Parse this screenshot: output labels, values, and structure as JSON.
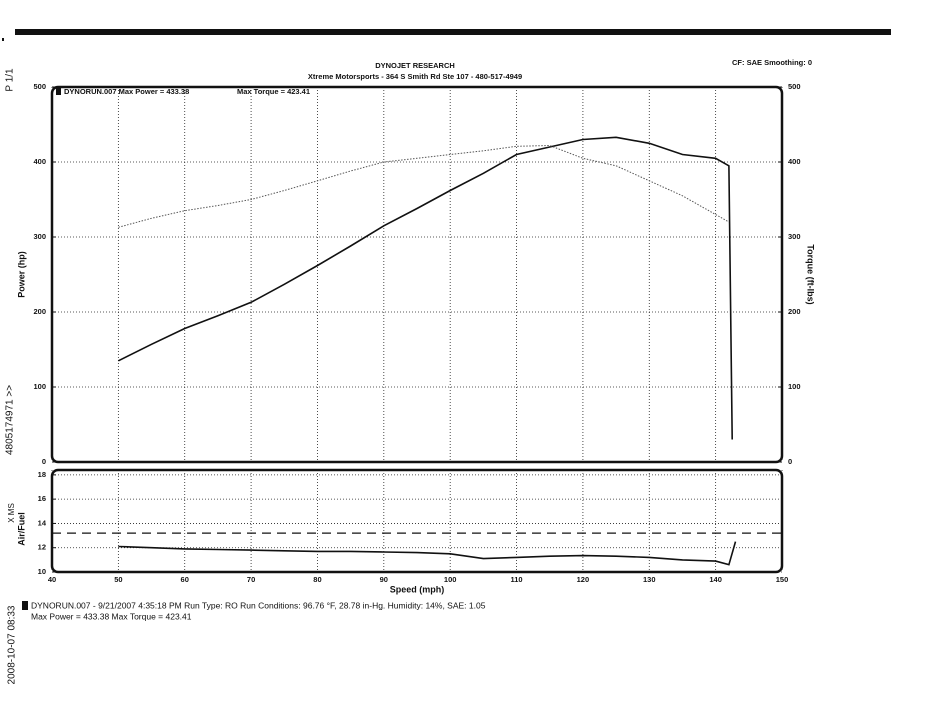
{
  "header": {
    "title": "DYNOJET RESEARCH",
    "subtitle": "Xtreme Motorsports - 364 S Smith Rd Ste 107 - 480-517-4949",
    "settings": "CF: SAE  Smoothing: 0"
  },
  "margin": {
    "page": "P 1/1",
    "phone": "4805174971 >>",
    "timestamp": "2008-10-07 08:33"
  },
  "footer": {
    "line1": "DYNORUN.007 - 9/21/2007 4:35:18 PM  Run Type: RO  Run Conditions: 96.76 °F, 28.78 in-Hg.  Humidity: 14%, SAE: 1.05",
    "line2": "Max Power = 433.38  Max Torque = 423.41"
  },
  "chart_data": [
    {
      "type": "line",
      "annotations": [
        "DYNORUN.007 Max Power = 433.38",
        "Max Torque = 423.41"
      ],
      "ylabel": "Power (hp)",
      "y2label": "Torque (ft-lbs)",
      "x": [
        50,
        55,
        60,
        65,
        70,
        75,
        80,
        85,
        90,
        95,
        100,
        105,
        110,
        115,
        120,
        125,
        130,
        135,
        140,
        142,
        142.5
      ],
      "xlim": [
        40,
        150
      ],
      "ylim": [
        0,
        500
      ],
      "yticks": [
        0,
        100,
        200,
        300,
        400,
        500
      ],
      "y2lim": [
        0,
        500
      ],
      "y2ticks": [
        0,
        100,
        200,
        300,
        400,
        500
      ],
      "grid": true,
      "series": [
        {
          "color": "#111111",
          "style": "solid",
          "values": [
            135,
            157,
            178,
            195,
            213,
            237,
            262,
            288,
            315,
            338,
            362,
            385,
            410,
            420,
            430,
            433,
            425,
            410,
            405,
            395,
            30
          ]
        },
        {
          "color": "#555555",
          "style": "dotted",
          "axis": "y2",
          "values": [
            313,
            325,
            335,
            342,
            350,
            362,
            375,
            388,
            400,
            405,
            410,
            415,
            421,
            422,
            405,
            395,
            375,
            355,
            330,
            320,
            null
          ]
        }
      ]
    },
    {
      "type": "line",
      "ylabel": "Air/Fuel",
      "ylabel2": "X MS",
      "xlabel": "Speed (mph)",
      "x": [
        50,
        55,
        60,
        65,
        70,
        75,
        80,
        85,
        90,
        95,
        100,
        105,
        110,
        115,
        120,
        125,
        130,
        135,
        140,
        142,
        143
      ],
      "values": [
        12.1,
        12.0,
        11.9,
        11.85,
        11.8,
        11.75,
        11.7,
        11.7,
        11.65,
        11.6,
        11.5,
        11.1,
        11.2,
        11.3,
        11.35,
        11.3,
        11.2,
        11.0,
        10.9,
        10.6,
        12.5
      ],
      "color": "#111111",
      "hline": 13.2,
      "xlim": [
        40,
        150
      ],
      "xticks": [
        40,
        50,
        60,
        70,
        80,
        90,
        100,
        110,
        120,
        130,
        140,
        150
      ],
      "ylim": [
        10,
        18.4
      ],
      "yticks": [
        10,
        12,
        14,
        16,
        18
      ],
      "grid": true
    }
  ]
}
